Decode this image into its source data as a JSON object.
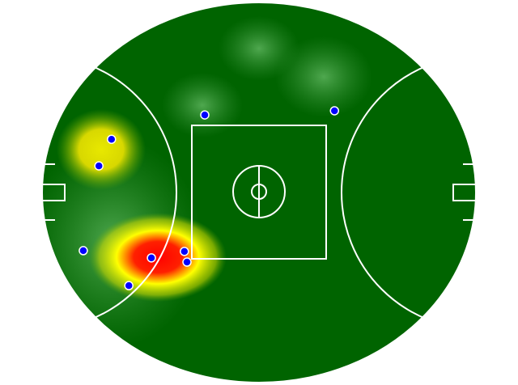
{
  "chart_data": {
    "type": "scatter",
    "color": "#0000ff",
    "field_color": "#006400",
    "xlim": [
      0,
      100
    ],
    "ylim": [
      0,
      100
    ],
    "x": [
      37.5,
      67.4,
      16.0,
      13.1,
      9.5,
      25.2,
      32.8,
      33.4,
      20.0
    ],
    "y": [
      70.4,
      71.5,
      64.0,
      57.0,
      34.7,
      32.8,
      34.5,
      31.7,
      25.5
    ]
  }
}
